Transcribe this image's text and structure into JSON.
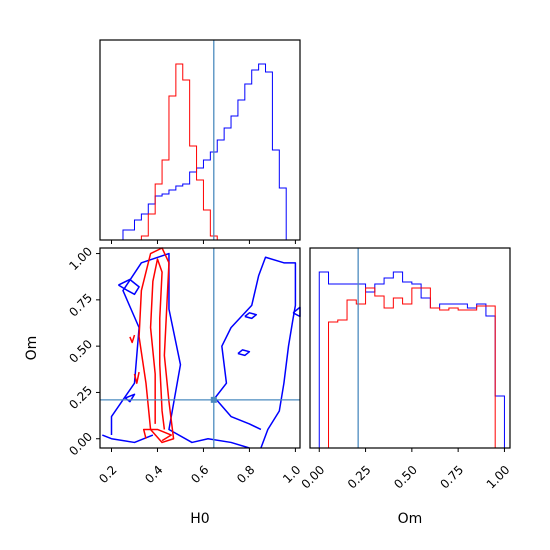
{
  "chart_data": {
    "type": "corner",
    "parameters": [
      "H0",
      "Om"
    ],
    "truths": {
      "H0": 0.645,
      "Om": 0.21
    },
    "truth_color": "#4c8bbf",
    "series": [
      {
        "name": "",
        "color": "#0000ff"
      },
      {
        "name": "",
        "color": "#ff0000"
      }
    ],
    "panels": [
      {
        "id": "H0-hist",
        "type": "histogram",
        "xlim": [
          0.15,
          1.02
        ],
        "bins": [
          0.15,
          0.2,
          0.25,
          0.3,
          0.33,
          0.36,
          0.39,
          0.42,
          0.45,
          0.48,
          0.51,
          0.54,
          0.57,
          0.6,
          0.63,
          0.66,
          0.69,
          0.72,
          0.75,
          0.78,
          0.81,
          0.84,
          0.87,
          0.9,
          0.93,
          0.96,
          1.0
        ],
        "counts": [
          [
            0,
            0,
            0.05,
            0.1,
            0.13,
            0.18,
            0.22,
            0.23,
            0.25,
            0.27,
            0.28,
            0.34,
            0.36,
            0.4,
            0.44,
            0.5,
            0.56,
            0.62,
            0.7,
            0.78,
            0.85,
            0.88,
            0.84,
            0.45,
            0.26,
            0.0
          ],
          [
            0,
            0,
            0,
            0,
            0.02,
            0.13,
            0.28,
            0.4,
            0.72,
            0.88,
            0.8,
            0.47,
            0.3,
            0.15,
            0.02,
            0,
            0,
            0,
            0,
            0,
            0,
            0,
            0,
            0,
            0,
            0
          ]
        ]
      },
      {
        "id": "H0-Om-2d",
        "type": "contour",
        "xlim": [
          0.15,
          1.02
        ],
        "ylim": [
          -0.05,
          1.03
        ],
        "x_ticks": [
          "0.2",
          "0.4",
          "0.6",
          "0.8",
          "1.0"
        ],
        "y_ticks": [
          "0.00",
          "0.25",
          "0.50",
          "0.75",
          "1.00"
        ],
        "xlabel": "H0",
        "ylabel": "Om"
      },
      {
        "id": "Om-hist",
        "type": "histogram",
        "xlim": [
          -0.05,
          1.03
        ],
        "bins": [
          -0.05,
          0,
          0.05,
          0.1,
          0.15,
          0.2,
          0.25,
          0.3,
          0.35,
          0.4,
          0.45,
          0.5,
          0.55,
          0.6,
          0.65,
          0.7,
          0.75,
          0.8,
          0.85,
          0.9,
          0.95,
          1.0
        ],
        "counts": [
          [
            0.0,
            0.88,
            0.82,
            0.82,
            0.82,
            0.82,
            0.78,
            0.82,
            0.85,
            0.88,
            0.83,
            0.82,
            0.75,
            0.7,
            0.72,
            0.72,
            0.72,
            0.7,
            0.72,
            0.66,
            0.26
          ],
          [
            0,
            0,
            0.63,
            0.64,
            0.74,
            0.72,
            0.8,
            0.76,
            0.7,
            0.75,
            0.72,
            0.8,
            0.8,
            0.7,
            0.69,
            0.7,
            0.69,
            0.69,
            0.71,
            0.71,
            0.0
          ]
        ],
        "x_ticks": [
          "0.00",
          "0.25",
          "0.50",
          "0.75",
          "1.00"
        ],
        "xlabel": "Om"
      }
    ],
    "grid": false
  }
}
